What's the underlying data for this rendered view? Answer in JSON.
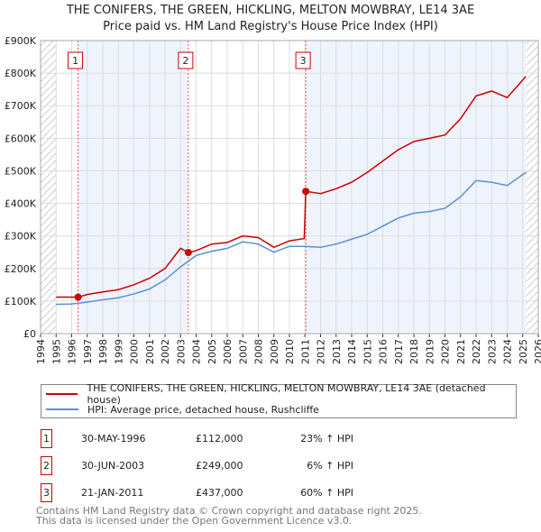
{
  "title": "THE CONIFERS, THE GREEN, HICKLING, MELTON MOWBRAY, LE14 3AE",
  "subtitle": "Price paid vs. HM Land Registry's House Price Index (HPI)",
  "chart_data": {
    "type": "line",
    "xlim": [
      1994,
      2026
    ],
    "ylim": [
      0,
      900000
    ],
    "x_ticks": [
      "1994",
      "1995",
      "1996",
      "1997",
      "1998",
      "1999",
      "2000",
      "2001",
      "2002",
      "2003",
      "2004",
      "2005",
      "2006",
      "2007",
      "2008",
      "2009",
      "2010",
      "2011",
      "2012",
      "2013",
      "2014",
      "2015",
      "2016",
      "2017",
      "2018",
      "2019",
      "2020",
      "2021",
      "2022",
      "2023",
      "2024",
      "2025",
      "2026"
    ],
    "y_ticks": [
      {
        "v": 0,
        "label": "£0"
      },
      {
        "v": 100000,
        "label": "£100K"
      },
      {
        "v": 200000,
        "label": "£200K"
      },
      {
        "v": 300000,
        "label": "£300K"
      },
      {
        "v": 400000,
        "label": "£400K"
      },
      {
        "v": 500000,
        "label": "£500K"
      },
      {
        "v": 600000,
        "label": "£600K"
      },
      {
        "v": 700000,
        "label": "£700K"
      },
      {
        "v": 800000,
        "label": "£800K"
      },
      {
        "v": 900000,
        "label": "£900K"
      }
    ],
    "series": [
      {
        "name": "THE CONIFERS, THE GREEN, HICKLING, MELTON MOWBRAY, LE14 3AE (detached house)",
        "color": "#cc0000",
        "x": [
          1995,
          1996.41,
          1997,
          1998,
          1999,
          2000,
          2001,
          2002,
          2003,
          2003.5,
          2004,
          2005,
          2006,
          2007,
          2008,
          2009,
          2010,
          2010.95,
          2011.05,
          2012,
          2013,
          2014,
          2015,
          2016,
          2017,
          2018,
          2019,
          2020,
          2021,
          2022,
          2023,
          2024,
          2025.2
        ],
        "y": [
          112000,
          112000,
          120000,
          128000,
          135000,
          150000,
          170000,
          200000,
          262000,
          249000,
          255000,
          275000,
          280000,
          300000,
          295000,
          265000,
          285000,
          292000,
          437000,
          430000,
          445000,
          465000,
          495000,
          530000,
          565000,
          590000,
          600000,
          610000,
          660000,
          730000,
          745000,
          725000,
          790000
        ]
      },
      {
        "name": "HPI: Average price, detached house, Rushcliffe",
        "color": "#5a8fd6",
        "x": [
          1995,
          1996,
          1997,
          1998,
          1999,
          2000,
          2001,
          2002,
          2003,
          2004,
          2005,
          2006,
          2007,
          2008,
          2009,
          2010,
          2011,
          2012,
          2013,
          2014,
          2015,
          2016,
          2017,
          2018,
          2019,
          2020,
          2021,
          2022,
          2023,
          2024,
          2025.2
        ],
        "y": [
          90000,
          91000,
          97000,
          104000,
          110000,
          122000,
          137000,
          165000,
          205000,
          240000,
          253000,
          262000,
          282000,
          275000,
          250000,
          268000,
          268000,
          265000,
          275000,
          290000,
          305000,
          330000,
          355000,
          370000,
          375000,
          385000,
          420000,
          470000,
          465000,
          455000,
          495000
        ]
      }
    ],
    "sales": [
      {
        "n": "1",
        "x": 1996.41,
        "y": 112000
      },
      {
        "n": "2",
        "x": 2003.5,
        "y": 249000
      },
      {
        "n": "3",
        "x": 2011.05,
        "y": 437000
      }
    ],
    "data_end": 2025.2
  },
  "legend": [
    "THE CONIFERS, THE GREEN, HICKLING, MELTON MOWBRAY, LE14 3AE (detached house)",
    "HPI: Average price, detached house, Rushcliffe"
  ],
  "transactions": [
    {
      "n": "1",
      "date": "30-MAY-1996",
      "price": "£112,000",
      "hpi": "23% ↑ HPI"
    },
    {
      "n": "2",
      "date": "30-JUN-2003",
      "price": "£249,000",
      "hpi": "6% ↑ HPI"
    },
    {
      "n": "3",
      "date": "21-JAN-2011",
      "price": "£437,000",
      "hpi": "60% ↑ HPI"
    }
  ],
  "footer": [
    "Contains HM Land Registry data © Crown copyright and database right 2025.",
    "This data is licensed under the Open Government Licence v3.0."
  ]
}
